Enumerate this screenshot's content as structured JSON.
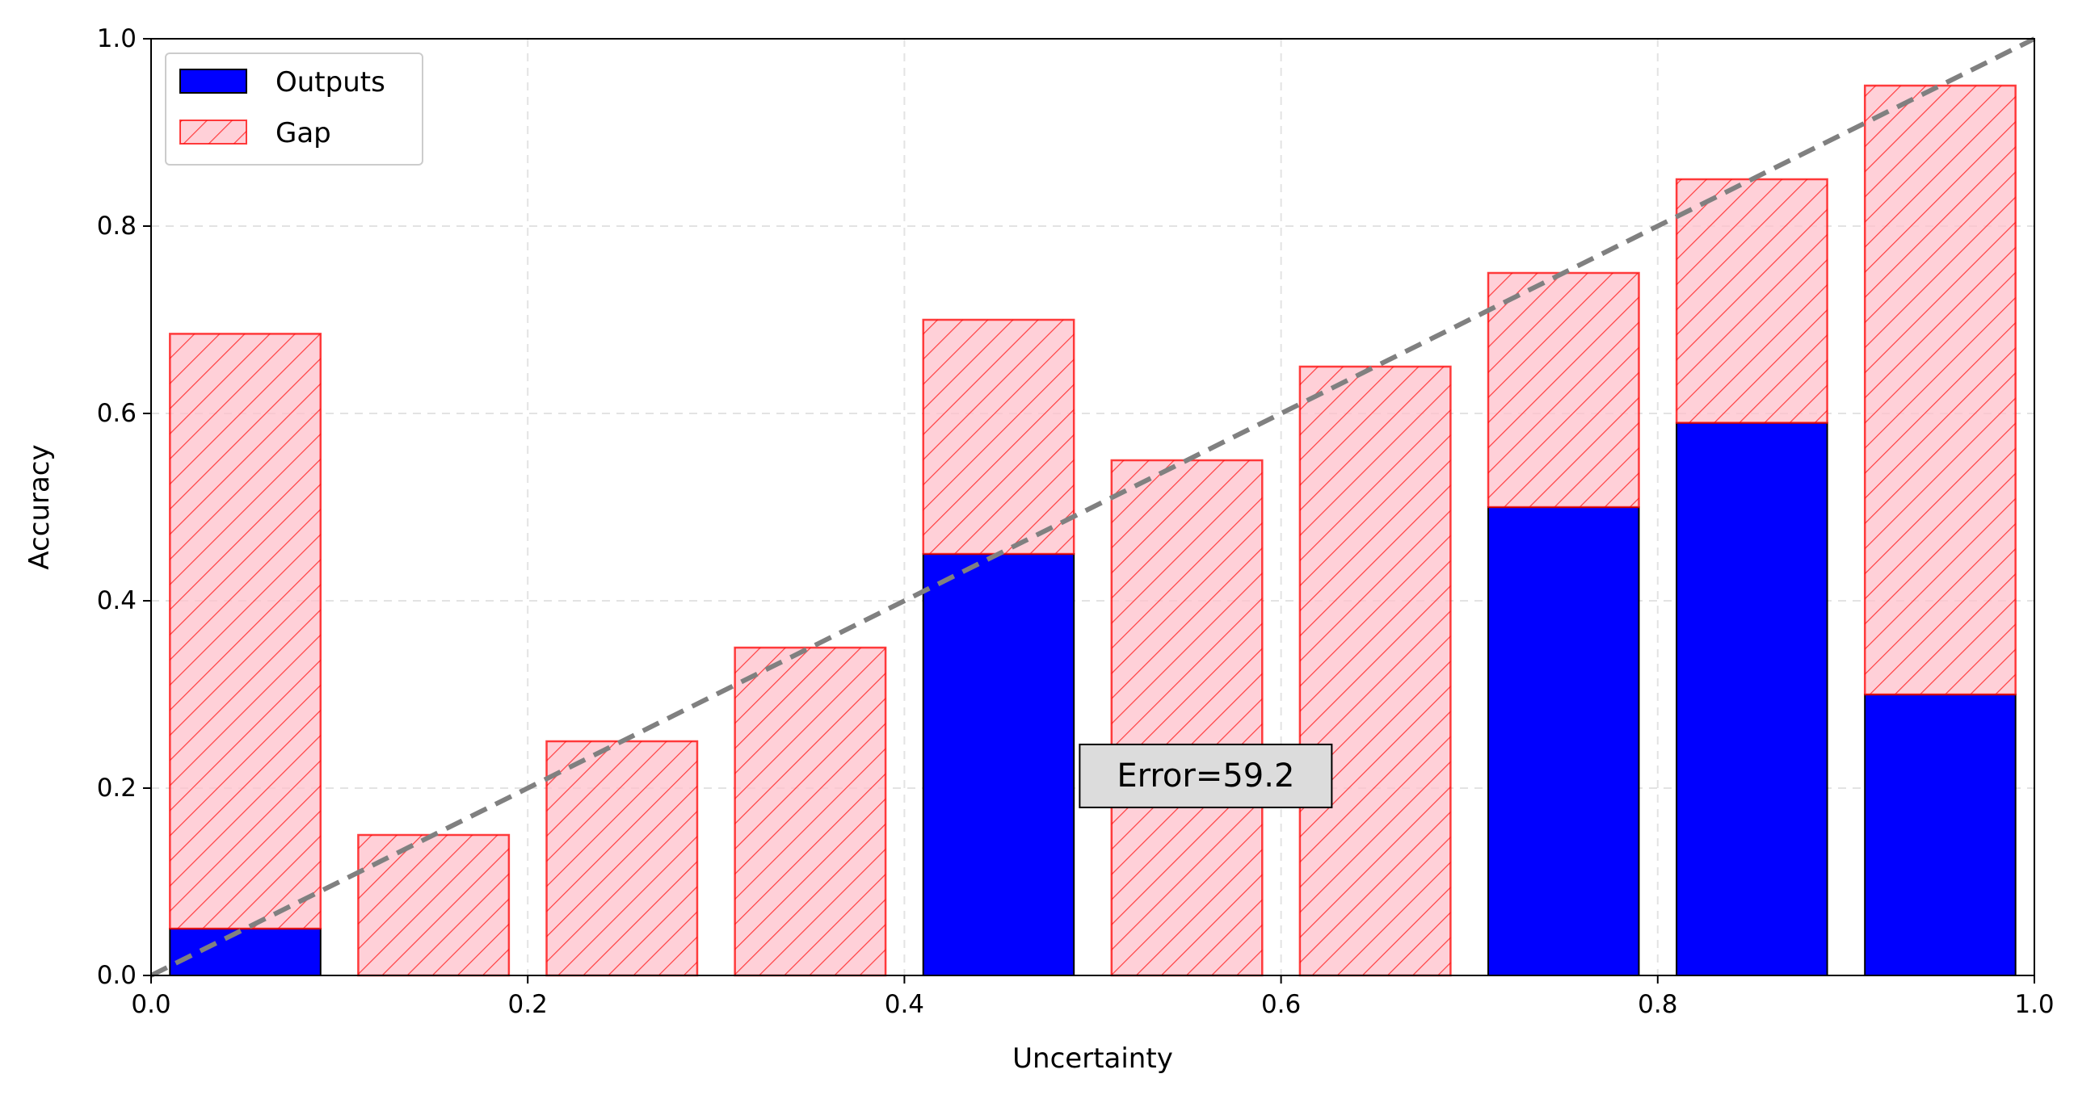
{
  "chart_data": {
    "type": "bar",
    "xlabel": "Uncertainty",
    "ylabel": "Accuracy",
    "xlim": [
      0.0,
      1.0
    ],
    "ylim": [
      0.0,
      1.0
    ],
    "xticks": [
      "0.0",
      "0.2",
      "0.4",
      "0.6",
      "0.8",
      "1.0"
    ],
    "yticks": [
      "0.0",
      "0.2",
      "0.4",
      "0.6",
      "0.8",
      "1.0"
    ],
    "grid": true,
    "legend_position": "top-left",
    "bin_centers": [
      0.05,
      0.15,
      0.25,
      0.35,
      0.45,
      0.55,
      0.65,
      0.75,
      0.85,
      0.95
    ],
    "bar_width": 0.08,
    "series": [
      {
        "name": "Outputs",
        "values": [
          0.05,
          0.0,
          0.0,
          0.0,
          0.45,
          0.0,
          0.0,
          0.5,
          0.59,
          0.3
        ],
        "color": "#0000ff",
        "edge": "#000000"
      },
      {
        "name": "Gap",
        "values": [
          0.685,
          0.15,
          0.25,
          0.35,
          0.7,
          0.55,
          0.65,
          0.75,
          0.85,
          0.95
        ],
        "color": "#ffc0cb",
        "edge": "#ff0000",
        "hatch": "//"
      }
    ],
    "diagonal": {
      "from": [
        0,
        0
      ],
      "to": [
        1,
        1
      ],
      "color": "#808080",
      "style": "dashed"
    },
    "annotation": {
      "text": "Error=59.2",
      "x": 0.56,
      "y": 0.213
    }
  }
}
